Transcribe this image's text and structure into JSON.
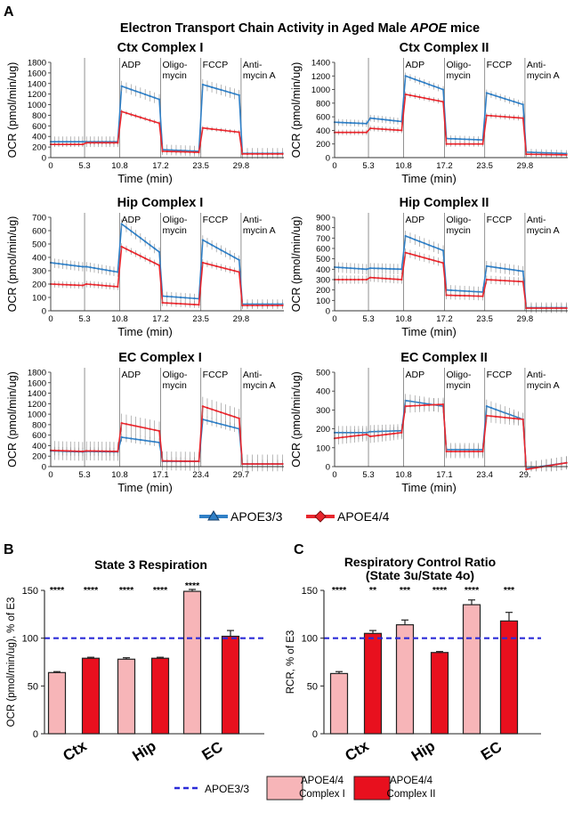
{
  "panel_labels": {
    "a": "A",
    "b": "B",
    "c": "C"
  },
  "main_title_prefix": "Electron Transport Chain Activity in Aged Male ",
  "main_title_italic": "APOE",
  "main_title_suffix": " mice",
  "colors": {
    "apoe33": "#2f7fc6",
    "apoe44": "#e8262d",
    "bar_light": "#f7b5b8",
    "bar_dark": "#e8101e",
    "ref_line": "#2b2bd8"
  },
  "legend_top": {
    "series1": "APOE3/3",
    "series2": "APOE4/4"
  },
  "legend_bottom": {
    "ref": "APOE3/3",
    "c1_line1": "APOE4/4",
    "c1_line2": "Complex I",
    "c2_line1": "APOE4/4",
    "c2_line2": "Complex II"
  },
  "chart_data": [
    {
      "type": "line",
      "title": "Ctx Complex I",
      "xlabel": "Time (min)",
      "ylabel": "OCR (pmol/min/ug)",
      "ylim": [
        0,
        1800
      ],
      "yticks": [
        0,
        200,
        400,
        600,
        800,
        1000,
        1200,
        1400,
        1600,
        1800
      ],
      "xtick_labels": [
        "0",
        "5.3",
        "10.8",
        "17.2",
        "23.5",
        "29.8"
      ],
      "injections": [
        "ADP",
        "Oligo-\nmycin",
        "FCCP",
        "Anti-\nmycin A"
      ],
      "series": [
        {
          "name": "APOE3/3",
          "segments": [
            [
              300,
              300
            ],
            [
              300,
              300
            ],
            [
              1350,
              1100
            ],
            [
              150,
              120
            ],
            [
              1380,
              1180
            ],
            [
              80,
              80
            ]
          ],
          "err": 100
        },
        {
          "name": "APOE4/4",
          "segments": [
            [
              250,
              250
            ],
            [
              280,
              280
            ],
            [
              870,
              650
            ],
            [
              120,
              100
            ],
            [
              560,
              480
            ],
            [
              70,
              70
            ]
          ],
          "err": 40
        }
      ]
    },
    {
      "type": "line",
      "title": "Ctx Complex II",
      "xlabel": "Time (min)",
      "ylabel": "OCR (pmol/min/ug)",
      "ylim": [
        0,
        1400
      ],
      "yticks": [
        0,
        200,
        400,
        600,
        800,
        1000,
        1200,
        1400
      ],
      "xtick_labels": [
        "0",
        "5.3",
        "10.8",
        "17.2",
        "23.5",
        "29.8"
      ],
      "injections": [
        "ADP",
        "Oligo-\nmycin",
        "FCCP",
        "Anti-\nmycin A"
      ],
      "series": [
        {
          "name": "APOE3/3",
          "segments": [
            [
              520,
              500
            ],
            [
              580,
              530
            ],
            [
              1200,
              1000
            ],
            [
              280,
              260
            ],
            [
              950,
              780
            ],
            [
              80,
              60
            ]
          ],
          "err": 50
        },
        {
          "name": "APOE4/4",
          "segments": [
            [
              370,
              370
            ],
            [
              430,
              400
            ],
            [
              930,
              820
            ],
            [
              200,
              200
            ],
            [
              620,
              580
            ],
            [
              50,
              40
            ]
          ],
          "err": 40
        }
      ]
    },
    {
      "type": "line",
      "title": "Hip Complex I",
      "xlabel": "Time (min)",
      "ylabel": "OCR (pmol/min/ug)",
      "ylim": [
        0,
        700
      ],
      "yticks": [
        0,
        100,
        200,
        300,
        400,
        500,
        600,
        700
      ],
      "xtick_labels": [
        "0",
        "5.3",
        "10.8",
        "17.2",
        "23.5",
        "29.8"
      ],
      "injections": [
        "ADP",
        "Oligo-\nmycin",
        "FCCP",
        "Anti-\nmycin A"
      ],
      "series": [
        {
          "name": "APOE3/3",
          "segments": [
            [
              360,
              330
            ],
            [
              330,
              290
            ],
            [
              650,
              440
            ],
            [
              110,
              90
            ],
            [
              530,
              380
            ],
            [
              50,
              50
            ]
          ],
          "err": 35
        },
        {
          "name": "APOE4/4",
          "segments": [
            [
              200,
              190
            ],
            [
              200,
              180
            ],
            [
              480,
              340
            ],
            [
              60,
              45
            ],
            [
              360,
              290
            ],
            [
              40,
              40
            ]
          ],
          "err": 25
        }
      ]
    },
    {
      "type": "line",
      "title": "Hip Complex II",
      "xlabel": "Time (min)",
      "ylabel": "OCR (pmol/min/ug)",
      "ylim": [
        0,
        900
      ],
      "yticks": [
        0,
        100,
        200,
        300,
        400,
        500,
        600,
        700,
        800,
        900
      ],
      "xtick_labels": [
        "0",
        "5.3",
        "10.8",
        "17.2",
        "23.5",
        "29.8"
      ],
      "injections": [
        "ADP",
        "Oligo-\nmycin",
        "FCCP",
        "Anti-\nmycin A"
      ],
      "series": [
        {
          "name": "APOE3/3",
          "segments": [
            [
              420,
              400
            ],
            [
              410,
              400
            ],
            [
              720,
              580
            ],
            [
              200,
              180
            ],
            [
              430,
              380
            ],
            [
              30,
              30
            ]
          ],
          "err": 50
        },
        {
          "name": "APOE4/4",
          "segments": [
            [
              300,
              300
            ],
            [
              320,
              300
            ],
            [
              560,
              460
            ],
            [
              150,
              140
            ],
            [
              300,
              280
            ],
            [
              25,
              25
            ]
          ],
          "err": 40
        }
      ]
    },
    {
      "type": "line",
      "title": "EC Complex I",
      "xlabel": "Time (min)",
      "ylabel": "OCR (pmol/min/ug)",
      "ylim": [
        0,
        1800
      ],
      "yticks": [
        0,
        200,
        400,
        600,
        800,
        1000,
        1200,
        1400,
        1600,
        1800
      ],
      "xtick_labels": [
        "0",
        "5.3",
        "10.8",
        "17.1",
        "23.4",
        "29.7"
      ],
      "injections": [
        "ADP",
        "Oligo-\nmycin",
        "FCCP",
        "Anti-\nmycin A"
      ],
      "series": [
        {
          "name": "APOE3/3",
          "segments": [
            [
              300,
              280
            ],
            [
              290,
              280
            ],
            [
              560,
              460
            ],
            [
              100,
              100
            ],
            [
              900,
              720
            ],
            [
              50,
              50
            ]
          ],
          "err": 80
        },
        {
          "name": "APOE4/4",
          "segments": [
            [
              310,
              290
            ],
            [
              300,
              290
            ],
            [
              830,
              680
            ],
            [
              110,
              100
            ],
            [
              1150,
              920
            ],
            [
              50,
              50
            ]
          ],
          "err": 180
        }
      ]
    },
    {
      "type": "line",
      "title": "EC Complex II",
      "xlabel": "Time (min)",
      "ylabel": "OCR (pmol/min/ug)",
      "ylim": [
        0,
        500
      ],
      "yticks": [
        0,
        100,
        200,
        300,
        400,
        500
      ],
      "xtick_labels": [
        "0",
        "5.3",
        "10.8",
        "17.1",
        "23.4",
        "29."
      ],
      "injections": [
        "ADP",
        "Oligo-\nmycin",
        "FCCP",
        "Anti-\nmycin A"
      ],
      "series": [
        {
          "name": "APOE3/3",
          "segments": [
            [
              180,
              180
            ],
            [
              185,
              190
            ],
            [
              350,
              320
            ],
            [
              90,
              90
            ],
            [
              320,
              250
            ],
            [
              -10,
              20
            ]
          ],
          "err": 35
        },
        {
          "name": "APOE4/4",
          "segments": [
            [
              150,
              170
            ],
            [
              160,
              180
            ],
            [
              320,
              330
            ],
            [
              80,
              80
            ],
            [
              270,
              250
            ],
            [
              -15,
              20
            ]
          ],
          "err": 35
        }
      ]
    },
    {
      "type": "bar",
      "title": "State 3 Respiration",
      "ylabel": "OCR (pmol/min/ug), % of E3",
      "categories": [
        "Ctx",
        "Hip",
        "EC"
      ],
      "ylim": [
        0,
        150
      ],
      "yticks": [
        0,
        50,
        100,
        150
      ],
      "reference_line": 100,
      "series": [
        {
          "name": "APOE4/4 Complex I",
          "values": [
            64,
            78,
            149
          ],
          "errors": [
            1,
            1.5,
            2
          ]
        },
        {
          "name": "APOE4/4 Complex II",
          "values": [
            79,
            79,
            102
          ],
          "errors": [
            1,
            1,
            6
          ]
        }
      ],
      "annotations": [
        [
          "****",
          "****"
        ],
        [
          "****",
          "****"
        ],
        [
          "****",
          ""
        ]
      ]
    },
    {
      "type": "bar",
      "title": "Respiratory Control Ratio",
      "subtitle": "(State 3u/State 4o)",
      "ylabel": "RCR, % of E3",
      "categories": [
        "Ctx",
        "Hip",
        "EC"
      ],
      "ylim": [
        0,
        150
      ],
      "yticks": [
        0,
        50,
        100,
        150
      ],
      "reference_line": 100,
      "series": [
        {
          "name": "APOE4/4 Complex I",
          "values": [
            63,
            114,
            135
          ],
          "errors": [
            2,
            5,
            5
          ]
        },
        {
          "name": "APOE4/4 Complex II",
          "values": [
            105,
            85,
            118
          ],
          "errors": [
            3,
            1,
            9
          ]
        }
      ],
      "annotations": [
        [
          "****",
          "**"
        ],
        [
          "***",
          "****"
        ],
        [
          "****",
          "***"
        ]
      ]
    }
  ]
}
